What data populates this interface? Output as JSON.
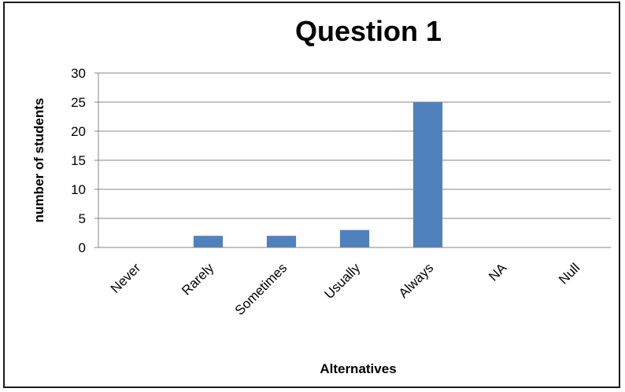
{
  "chart_data": {
    "type": "bar",
    "title": "Question 1",
    "xlabel": "Alternatives",
    "ylabel": "number of students",
    "categories": [
      "Never",
      "Rarely",
      "Sometimes",
      "Usually",
      "Always",
      "NA",
      "Null"
    ],
    "values": [
      0,
      2,
      2,
      3,
      25,
      0,
      0
    ],
    "ylim": [
      0,
      30
    ],
    "yticks": [
      0,
      5,
      10,
      15,
      20,
      25,
      30
    ],
    "grid": true,
    "legend": "none",
    "bar_color": "#4f81bd"
  }
}
